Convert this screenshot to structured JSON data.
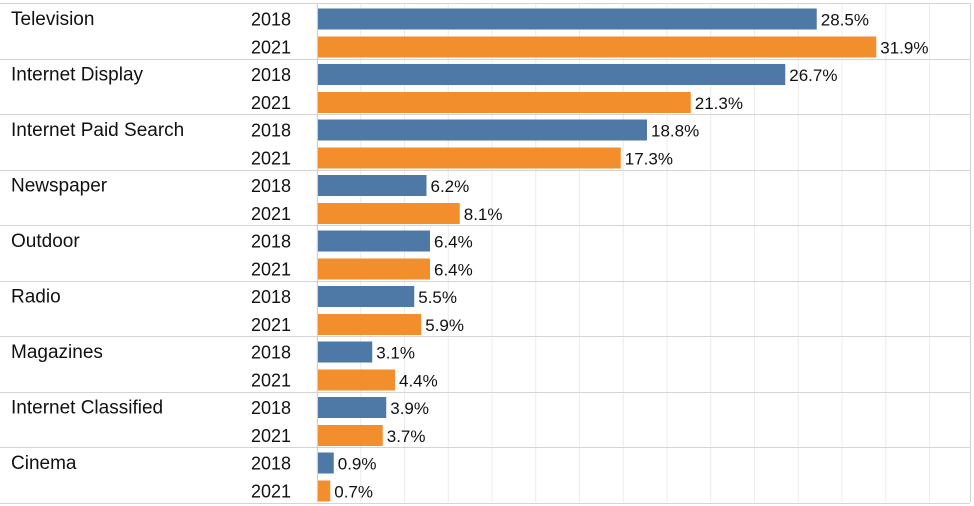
{
  "chart_data": {
    "type": "bar",
    "orientation": "horizontal",
    "categories": [
      "Television",
      "Internet Display",
      "Internet Paid Search",
      "Newspaper",
      "Outdoor",
      "Radio",
      "Magazines",
      "Internet Classified",
      "Cinema"
    ],
    "series": [
      {
        "name": "2018",
        "values": [
          28.5,
          26.7,
          18.8,
          6.2,
          6.4,
          5.5,
          3.1,
          3.9,
          0.9
        ],
        "labels": [
          "28.5%",
          "26.7%",
          "18.8%",
          "6.2%",
          "6.4%",
          "5.5%",
          "3.1%",
          "3.9%",
          "0.9%"
        ]
      },
      {
        "name": "2021",
        "values": [
          31.9,
          21.3,
          17.3,
          8.1,
          6.4,
          5.9,
          4.4,
          3.7,
          0.7
        ],
        "labels": [
          "31.9%",
          "21.3%",
          "17.3%",
          "8.1%",
          "6.4%",
          "5.9%",
          "4.4%",
          "3.7%",
          "0.7%"
        ]
      }
    ],
    "xlim": [
      0,
      37.5
    ],
    "grid": true,
    "unit": "%",
    "colors": {
      "2018": "#4e79a7",
      "2021": "#f28e2b"
    }
  }
}
